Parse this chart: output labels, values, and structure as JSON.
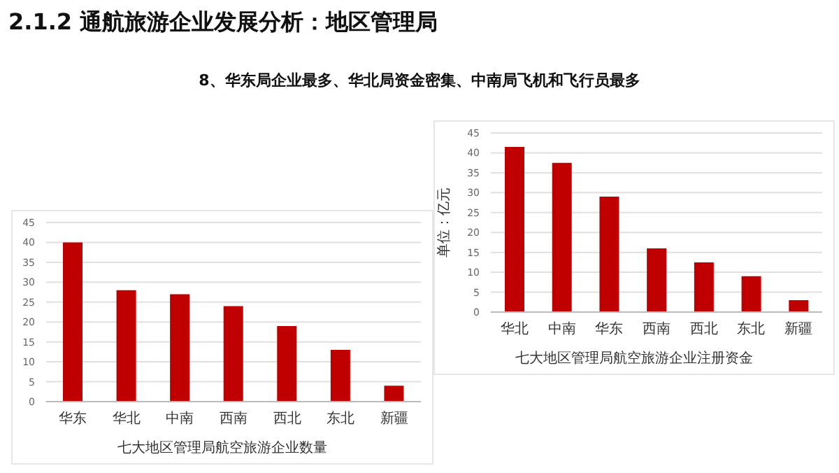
{
  "chart_data": [
    {
      "type": "bar",
      "title": "2.1.2  通航旅游企业发展分析：地区管理局",
      "subtitle": "8、华东局企业最多、华北局资金密集、中南局飞机和飞行员最多",
      "xlabel": "七大地区管理局航空旅游企业数量",
      "categories": [
        "华东",
        "华北",
        "中南",
        "西南",
        "西北",
        "东北",
        "新疆"
      ],
      "values": [
        40,
        28,
        27,
        24,
        19,
        13,
        4
      ],
      "color": "#c00000",
      "ylim": [
        0,
        45
      ],
      "yticks": [
        0,
        5,
        10,
        15,
        20,
        25,
        30,
        35,
        40,
        45
      ],
      "grid": "y"
    },
    {
      "type": "bar",
      "xlabel": "七大地区管理局航空旅游企业注册资金",
      "ylabel": "单位：亿元",
      "categories": [
        "华北",
        "中南",
        "华东",
        "西南",
        "西北",
        "东北",
        "新疆"
      ],
      "values": [
        41.5,
        37.5,
        29,
        16,
        12.5,
        9,
        3
      ],
      "color": "#c00000",
      "ylim": [
        0,
        45
      ],
      "yticks": [
        0,
        5,
        10,
        15,
        20,
        25,
        30,
        35,
        40,
        45
      ],
      "grid": "y"
    }
  ]
}
